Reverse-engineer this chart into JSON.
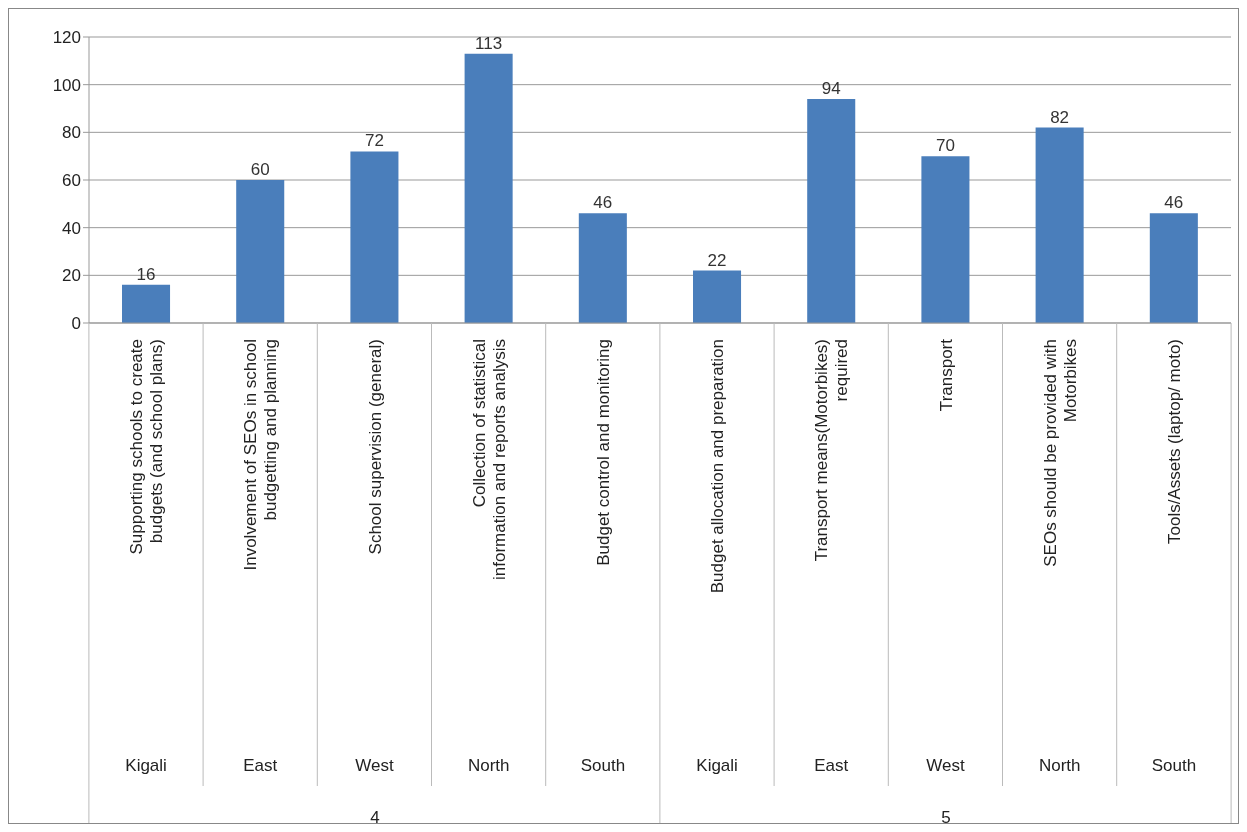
{
  "chart_data": {
    "type": "bar",
    "categories": [
      "Supporting schools to create budgets (and school plans)",
      "Involvement of SEOs in school budgetting and planning",
      "School supervision (general)",
      "Collection of statistical information and reports analysis",
      "Budget control and monitoring",
      "Budget allocation and preparation",
      "Transport means(Motorbikes) required",
      "Transport",
      "SEOs should be provided with Motorbikes",
      "Tools/Assets (laptop/ moto)"
    ],
    "values": [
      16,
      60,
      72,
      113,
      46,
      22,
      94,
      70,
      82,
      46
    ],
    "color": "#4a7ebb",
    "ylim": [
      0,
      120
    ],
    "yticks": [
      0,
      20,
      40,
      60,
      80,
      100,
      120
    ],
    "grid": "y",
    "data_labels": true,
    "legend": false,
    "annotations": [
      "Kigali",
      "East",
      "West",
      "North",
      "South",
      "Kigali",
      "East",
      "West",
      "North",
      "South",
      "4",
      "5"
    ]
  }
}
